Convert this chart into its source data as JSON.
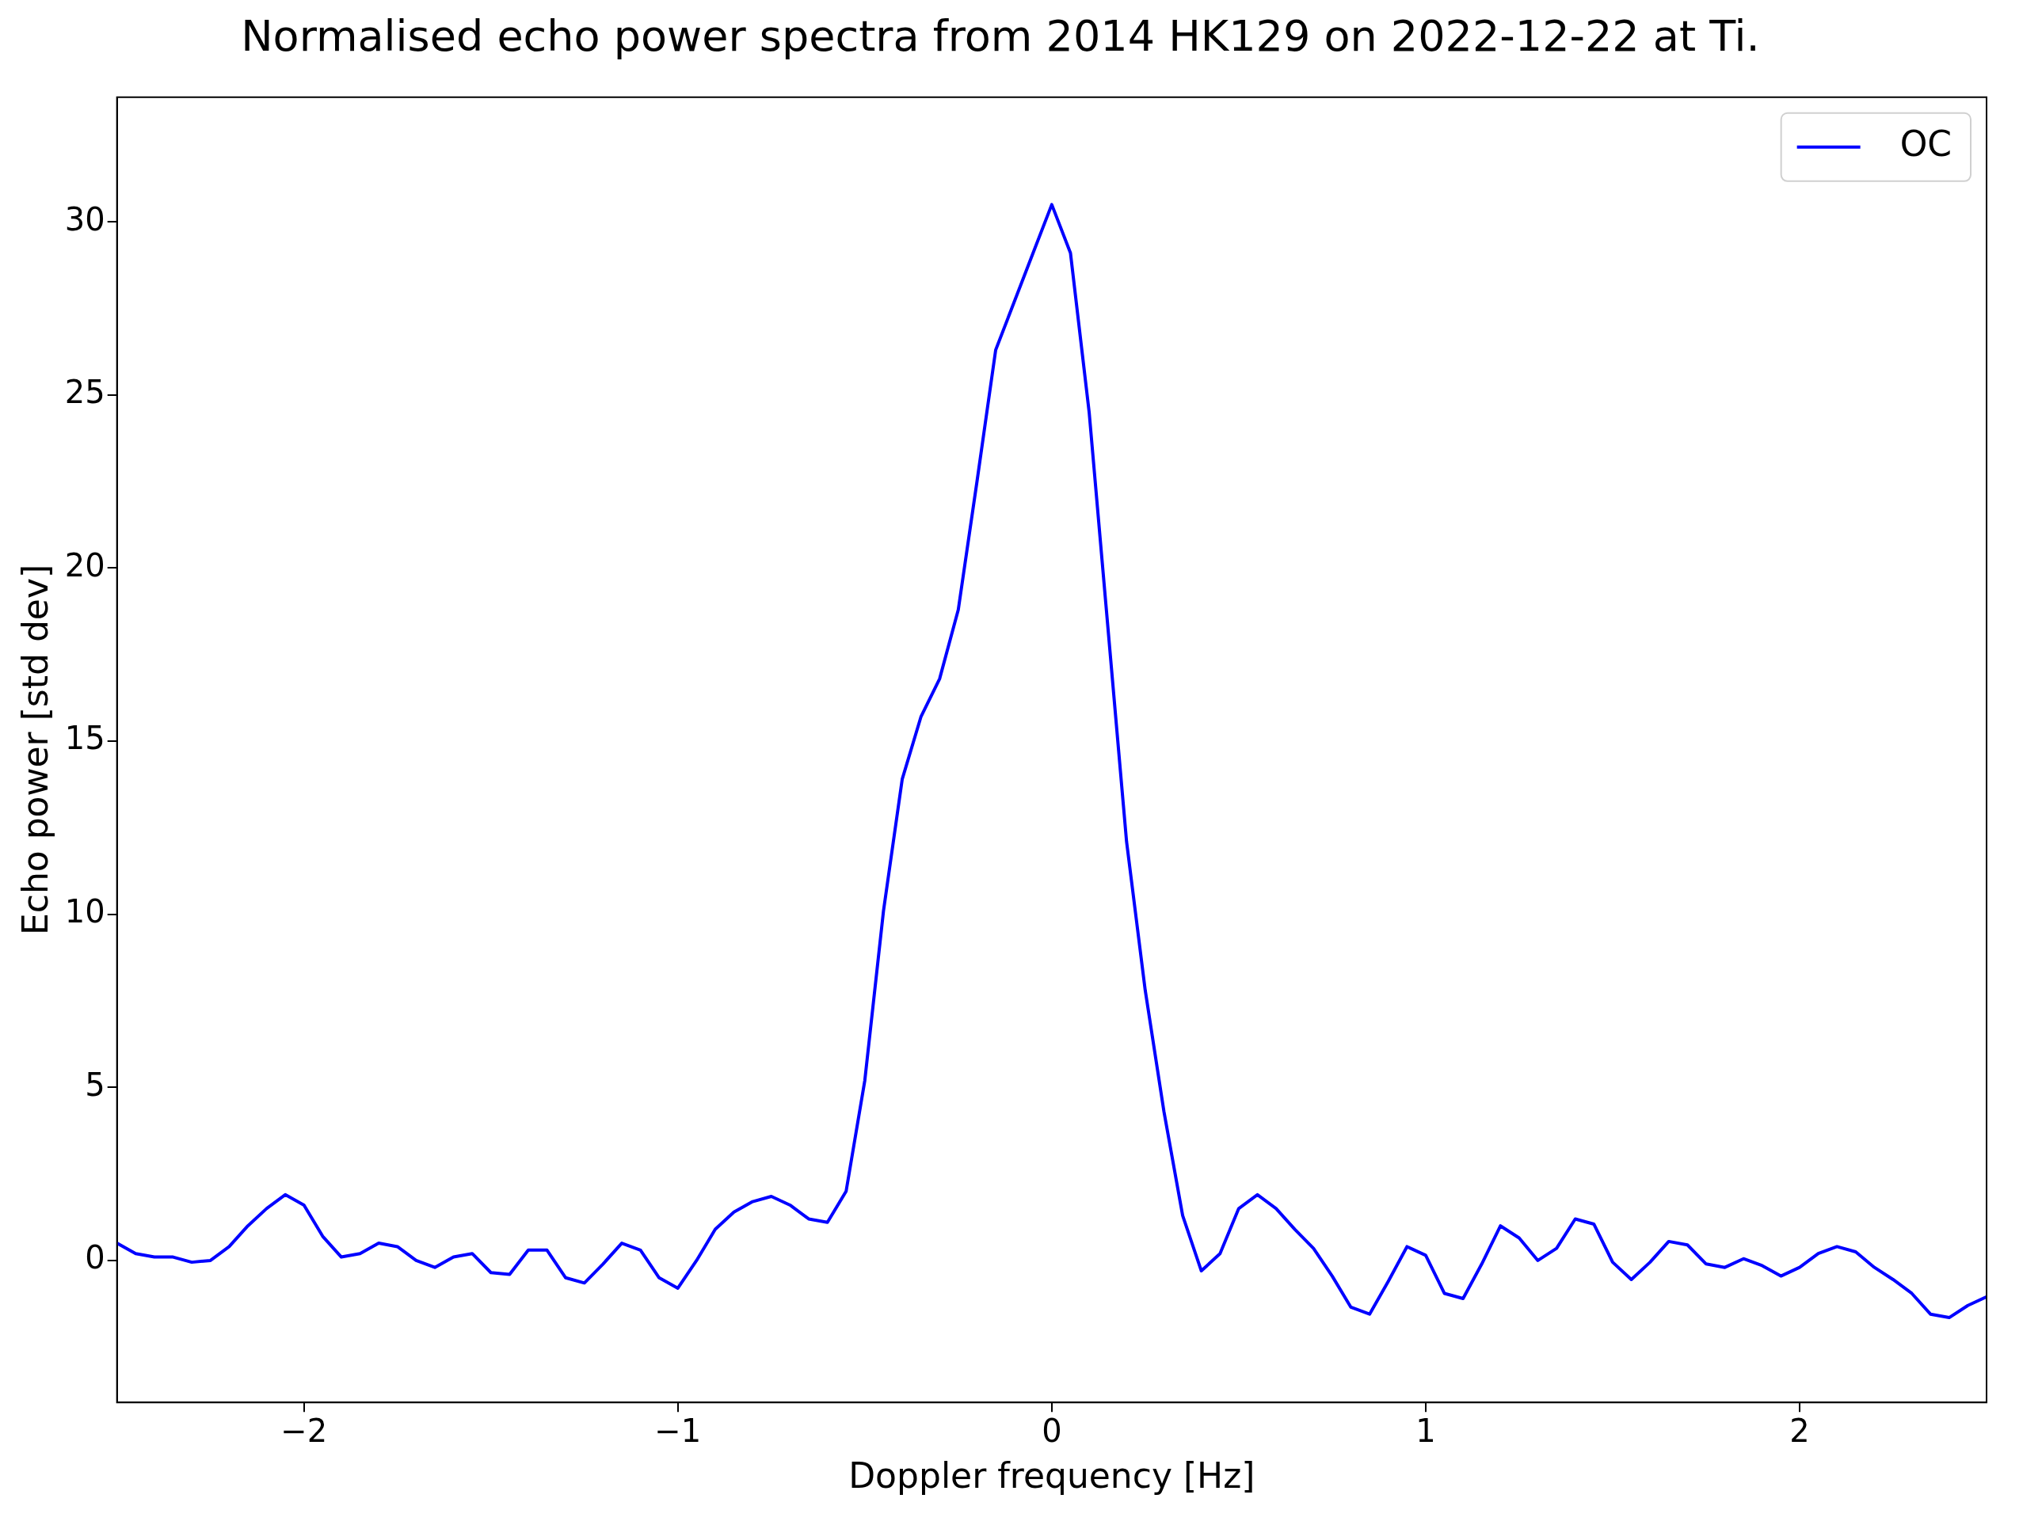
{
  "chart_data": {
    "type": "line",
    "title": "Normalised echo power spectra from 2014 HK129 on 2022-12-22 at Ti.",
    "xlabel": "Doppler frequency [Hz]",
    "ylabel": "Echo power [std dev]",
    "x": [
      -2.5,
      -2.45,
      -2.4,
      -2.35,
      -2.3,
      -2.25,
      -2.2,
      -2.15,
      -2.1,
      -2.05,
      -2.0,
      -1.95,
      -1.9,
      -1.85,
      -1.8,
      -1.75,
      -1.7,
      -1.65,
      -1.6,
      -1.55,
      -1.5,
      -1.45,
      -1.4,
      -1.35,
      -1.3,
      -1.25,
      -1.2,
      -1.15,
      -1.1,
      -1.05,
      -1.0,
      -0.95,
      -0.9,
      -0.85,
      -0.8,
      -0.75,
      -0.7,
      -0.65,
      -0.6,
      -0.55,
      -0.5,
      -0.45,
      -0.4,
      -0.35,
      -0.3,
      -0.25,
      -0.2,
      -0.15,
      -0.1,
      -0.05,
      0,
      0.05,
      0.1,
      0.15,
      0.2,
      0.25,
      0.3,
      0.35,
      0.4,
      0.45,
      0.5,
      0.55,
      0.6,
      0.65,
      0.7,
      0.75,
      0.8,
      0.85,
      0.9,
      0.95,
      1.0,
      1.05,
      1.1,
      1.15,
      1.2,
      1.25,
      1.3,
      1.35,
      1.4,
      1.45,
      1.5,
      1.55,
      1.6,
      1.65,
      1.7,
      1.75,
      1.8,
      1.85,
      1.9,
      1.95,
      2.0,
      2.05,
      2.1,
      2.15,
      2.2,
      2.25,
      2.3,
      2.35,
      2.4,
      2.45,
      2.5
    ],
    "series": [
      {
        "name": "OC",
        "color": "#0000ff",
        "values": [
          0.5,
          0.2,
          0.1,
          0.1,
          -0.05,
          0.0,
          0.4,
          1.0,
          1.5,
          1.9,
          1.6,
          0.7,
          0.1,
          0.2,
          0.5,
          0.4,
          0.0,
          -0.2,
          0.1,
          0.2,
          -0.35,
          -0.4,
          0.3,
          0.3,
          -0.5,
          -0.65,
          -0.1,
          0.5,
          0.3,
          -0.5,
          -0.8,
          0.0,
          0.9,
          1.4,
          1.7,
          1.85,
          1.6,
          1.2,
          1.1,
          2.0,
          5.2,
          10.1,
          13.9,
          15.7,
          16.8,
          18.8,
          22.5,
          26.3,
          27.7,
          29.1,
          30.5,
          29.1,
          24.5,
          18.3,
          12.1,
          7.8,
          4.3,
          1.3,
          -0.3,
          0.2,
          1.5,
          1.9,
          1.5,
          0.9,
          0.35,
          -0.45,
          -1.35,
          -1.55,
          -0.6,
          0.4,
          0.15,
          -0.95,
          -1.1,
          -0.1,
          1.0,
          0.65,
          0.0,
          0.35,
          1.2,
          1.05,
          -0.05,
          -0.55,
          -0.05,
          0.55,
          0.45,
          -0.1,
          -0.2,
          0.05,
          -0.15,
          -0.45,
          -0.2,
          0.2,
          0.4,
          0.25,
          -0.2,
          -0.55,
          -0.95,
          -1.55,
          -1.65,
          -1.3,
          -1.05
        ]
      }
    ],
    "xlim": [
      -2.5,
      2.5
    ],
    "xticks": [
      -2,
      -1,
      0,
      1,
      2
    ],
    "ylim": [
      -4.1,
      33.6
    ],
    "yticks": [
      0,
      5,
      10,
      15,
      20,
      25,
      30
    ],
    "grid": false,
    "legend": "top right",
    "marker": "none",
    "line_style": "solid"
  }
}
